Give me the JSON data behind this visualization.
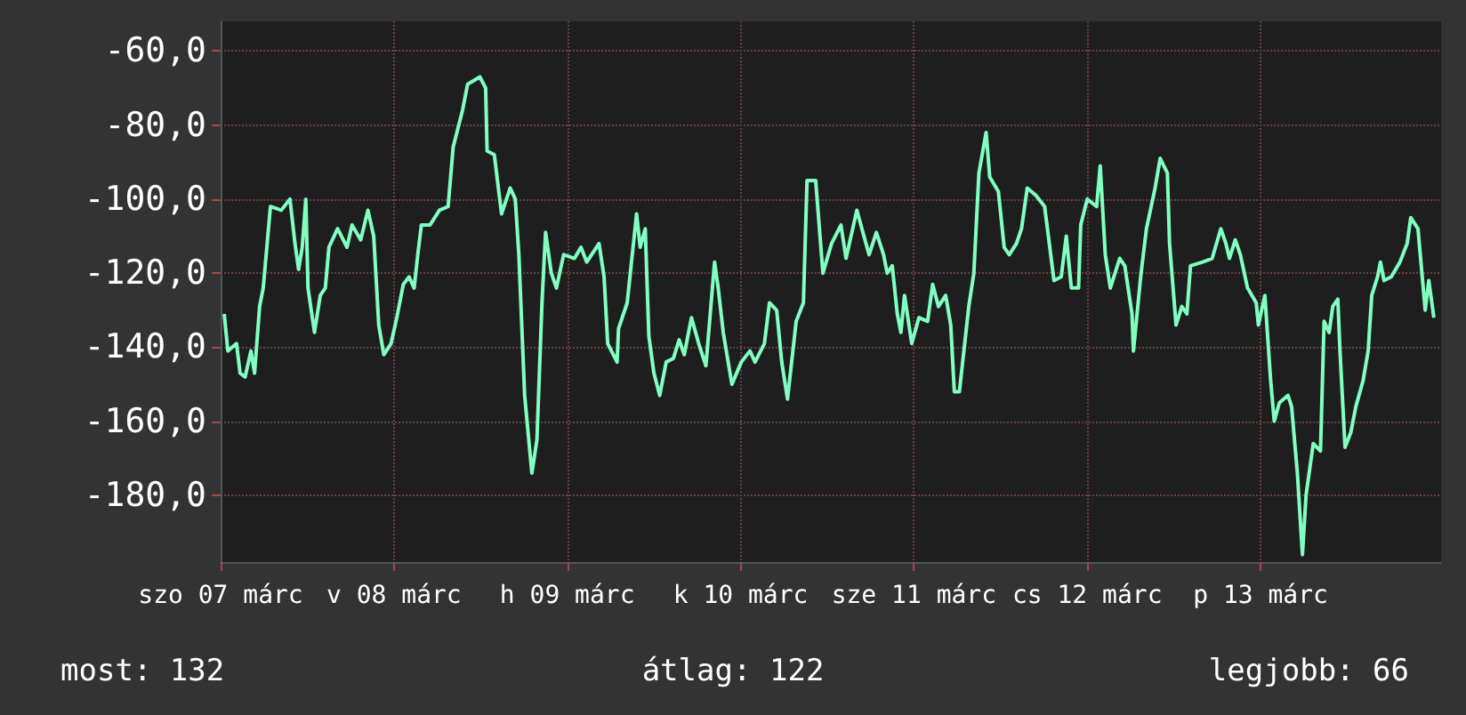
{
  "chart_data": {
    "type": "line",
    "x": [
      "--03-07T00:30",
      "--03-07T01:00",
      "--03-07T02:12",
      "--03-07T02:42",
      "--03-07T03:24",
      "--03-07T04:12",
      "--03-07T04:42",
      "--03-07T05:24",
      "--03-07T05:54",
      "--03-07T06:54",
      "--03-07T08:24",
      "--03-07T09:36",
      "--03-07T10:18",
      "--03-07T10:48",
      "--03-07T11:18",
      "--03-07T11:48",
      "--03-07T12:06",
      "--03-07T13:00",
      "--03-07T13:48",
      "--03-07T14:30",
      "--03-07T15:00",
      "--03-07T16:12",
      "--03-07T17:30",
      "--03-07T18:12",
      "--03-07T19:24",
      "--03-07T20:24",
      "--03-07T21:12",
      "--03-07T21:54",
      "--03-07T22:36",
      "--03-07T23:36",
      "--03-08T00:24",
      "--03-08T01:18",
      "--03-08T02:06",
      "--03-08T02:48",
      "--03-08T03:18",
      "--03-08T03:48",
      "--03-08T05:00",
      "--03-08T06:18",
      "--03-08T07:30",
      "--03-08T08:12",
      "--03-08T09:30",
      "--03-08T10:12",
      "--03-08T11:54",
      "--03-08T12:42",
      "--03-08T12:54",
      "--03-08T13:54",
      "--03-08T14:54",
      "--03-08T16:06",
      "--03-08T16:48",
      "--03-08T17:18",
      "--03-08T18:06",
      "--03-08T19:06",
      "--03-08T19:48",
      "--03-08T20:30",
      "--03-08T21:00",
      "--03-08T21:48",
      "--03-08T22:30",
      "--03-08T23:30",
      "--03-09T01:00",
      "--03-09T01:54",
      "--03-09T02:42",
      "--03-09T04:24",
      "--03-09T05:06",
      "--03-09T05:36",
      "--03-09T06:54",
      "--03-09T07:06",
      "--03-09T08:18",
      "--03-09T09:36",
      "--03-09T10:06",
      "--03-09T10:48",
      "--03-09T11:18",
      "--03-09T12:00",
      "--03-09T12:48",
      "--03-09T13:42",
      "--03-09T14:42",
      "--03-09T15:30",
      "--03-09T16:12",
      "--03-09T17:12",
      "--03-09T18:12",
      "--03-09T19:12",
      "--03-09T20:24",
      "--03-09T20:54",
      "--03-09T21:36",
      "--03-09T22:48",
      "--03-10T00:06",
      "--03-10T01:18",
      "--03-10T02:00",
      "--03-10T03:18",
      "--03-10T04:00",
      "--03-10T05:00",
      "--03-10T05:42",
      "--03-10T06:30",
      "--03-10T07:42",
      "--03-10T08:42",
      "--03-10T09:12",
      "--03-10T10:24",
      "--03-10T11:24",
      "--03-10T12:36",
      "--03-10T13:54",
      "--03-10T14:36",
      "--03-10T16:06",
      "--03-10T16:48",
      "--03-10T17:48",
      "--03-10T18:48",
      "--03-10T19:48",
      "--03-10T20:18",
      "--03-10T21:00",
      "--03-10T21:42",
      "--03-10T22:12",
      "--03-10T22:42",
      "--03-10T23:42",
      "--03-11T00:42",
      "--03-11T01:54",
      "--03-11T02:36",
      "--03-11T03:24",
      "--03-11T04:24",
      "--03-11T05:06",
      "--03-11T05:36",
      "--03-11T06:18",
      "--03-11T07:36",
      "--03-11T08:18",
      "--03-11T09:00",
      "--03-11T10:00",
      "--03-11T10:30",
      "--03-11T11:42",
      "--03-11T12:30",
      "--03-11T13:12",
      "--03-11T14:12",
      "--03-11T14:54",
      "--03-11T15:42",
      "--03-11T16:54",
      "--03-11T18:06",
      "--03-11T19:24",
      "--03-11T20:24",
      "--03-11T21:06",
      "--03-11T21:48",
      "--03-11T22:48",
      "--03-11T23:06",
      "--03-12T00:00",
      "--03-12T01:18",
      "--03-12T01:48",
      "--03-12T02:30",
      "--03-12T03:12",
      "--03-12T04:30",
      "--03-12T05:12",
      "--03-12T06:12",
      "--03-12T06:24",
      "--03-12T07:24",
      "--03-12T08:12",
      "--03-12T09:24",
      "--03-12T10:06",
      "--03-12T11:06",
      "--03-12T11:24",
      "--03-12T12:18",
      "--03-12T13:06",
      "--03-12T13:48",
      "--03-12T14:18",
      "--03-12T16:00",
      "--03-12T17:18",
      "--03-12T18:30",
      "--03-12T19:12",
      "--03-12T19:42",
      "--03-12T20:30",
      "--03-12T21:12",
      "--03-12T22:12",
      "--03-12T23:24",
      "--03-12T23:42",
      "--03-13T00:36",
      "--03-13T01:24",
      "--03-13T01:54",
      "--03-13T02:36",
      "--03-13T03:48",
      "--03-13T04:18",
      "--03-13T05:06",
      "--03-13T05:48",
      "--03-13T06:18",
      "--03-13T07:18",
      "--03-13T08:18",
      "--03-13T08:48",
      "--03-13T09:30",
      "--03-13T10:00",
      "--03-13T10:42",
      "--03-13T11:00",
      "--03-13T11:42",
      "--03-13T12:30",
      "--03-13T13:12",
      "--03-13T14:12",
      "--03-13T14:54",
      "--03-13T15:24",
      "--03-13T16:12",
      "--03-13T16:36",
      "--03-13T17:06",
      "--03-13T18:06",
      "--03-13T19:18",
      "--03-13T20:18",
      "--03-13T20:48",
      "--03-13T21:48",
      "--03-13T22:48",
      "--03-13T23:18",
      "--03-14T00:00"
    ],
    "series": [
      {
        "color": "#80ffc0",
        "values": [
          -131,
          -141,
          -139,
          -147,
          -148,
          -141,
          -147,
          -129,
          -124,
          -102,
          -103,
          -100,
          -112,
          -119,
          -113,
          -100,
          -124,
          -136,
          -126,
          -124,
          -113,
          -108,
          -113,
          -107,
          -111,
          -103,
          -110,
          -134,
          -142,
          -139,
          -132,
          -123,
          -121,
          -124,
          -115,
          -107,
          -107,
          -103,
          -102,
          -86,
          -76,
          -69,
          -67,
          -70,
          -87,
          -88,
          -104,
          -97,
          -100,
          -115,
          -153,
          -174,
          -165,
          -128,
          -109,
          -120,
          -124,
          -115,
          -116,
          -113,
          -117,
          -112,
          -121,
          -139,
          -144,
          -135,
          -128,
          -104,
          -113,
          -108,
          -137,
          -147,
          -153,
          -144,
          -143,
          -138,
          -142,
          -132,
          -139,
          -145,
          -117,
          -124,
          -136,
          -150,
          -144,
          -141,
          -144,
          -139,
          -128,
          -130,
          -144,
          -154,
          -133,
          -128,
          -95,
          -95,
          -120,
          -112,
          -107,
          -116,
          -103,
          -108,
          -115,
          -109,
          -115,
          -120,
          -118,
          -131,
          -136,
          -126,
          -139,
          -132,
          -133,
          -123,
          -129,
          -126,
          -134,
          -152,
          -152,
          -129,
          -120,
          -93,
          -82,
          -94,
          -98,
          -113,
          -115,
          -112,
          -108,
          -97,
          -99,
          -102,
          -122,
          -121,
          -110,
          -124,
          -124,
          -107,
          -100,
          -102,
          -91,
          -115,
          -124,
          -116,
          -118,
          -131,
          -141,
          -121,
          -108,
          -97,
          -89,
          -93,
          -112,
          -134,
          -129,
          -131,
          -118,
          -117,
          -116,
          -108,
          -112,
          -116,
          -111,
          -115,
          -124,
          -128,
          -134,
          -126,
          -149,
          -160,
          -155,
          -153,
          -156,
          -174,
          -196,
          -180,
          -166,
          -168,
          -133,
          -136,
          -129,
          -127,
          -141,
          -167,
          -163,
          -156,
          -149,
          -141,
          -126,
          -121,
          -117,
          -122,
          -121,
          -117,
          -112,
          -105,
          -108,
          -130,
          -122,
          -132
        ]
      }
    ],
    "xlim": [
      "--03-07T00:00",
      "--03-14T01:00"
    ],
    "xticks": [
      {
        "value": "--03-07T00:00",
        "label": "szo 07 márc"
      },
      {
        "value": "--03-08T00:00",
        "label": "v 08 márc"
      },
      {
        "value": "--03-09T00:00",
        "label": "h 09 márc"
      },
      {
        "value": "--03-10T00:00",
        "label": "k 10 márc"
      },
      {
        "value": "--03-11T00:00",
        "label": "sze 11 márc"
      },
      {
        "value": "--03-12T00:00",
        "label": "cs 12 márc"
      },
      {
        "value": "--03-13T00:00",
        "label": "p 13 márc"
      }
    ],
    "ylim": [
      -198,
      -52
    ],
    "yticks": [
      {
        "value": -60,
        "label": "-60,0"
      },
      {
        "value": -80,
        "label": "-80,0"
      },
      {
        "value": -100,
        "label": "-100,0"
      },
      {
        "value": -120,
        "label": "-120,0"
      },
      {
        "value": -140,
        "label": "-140,0"
      },
      {
        "value": -160,
        "label": "-160,0"
      },
      {
        "value": -180,
        "label": "-180,0"
      }
    ],
    "grid": true,
    "marker": "none",
    "line_style": "solid",
    "annotations": [
      "most: 132",
      "átlag: 122",
      "legjobb: 66"
    ]
  }
}
